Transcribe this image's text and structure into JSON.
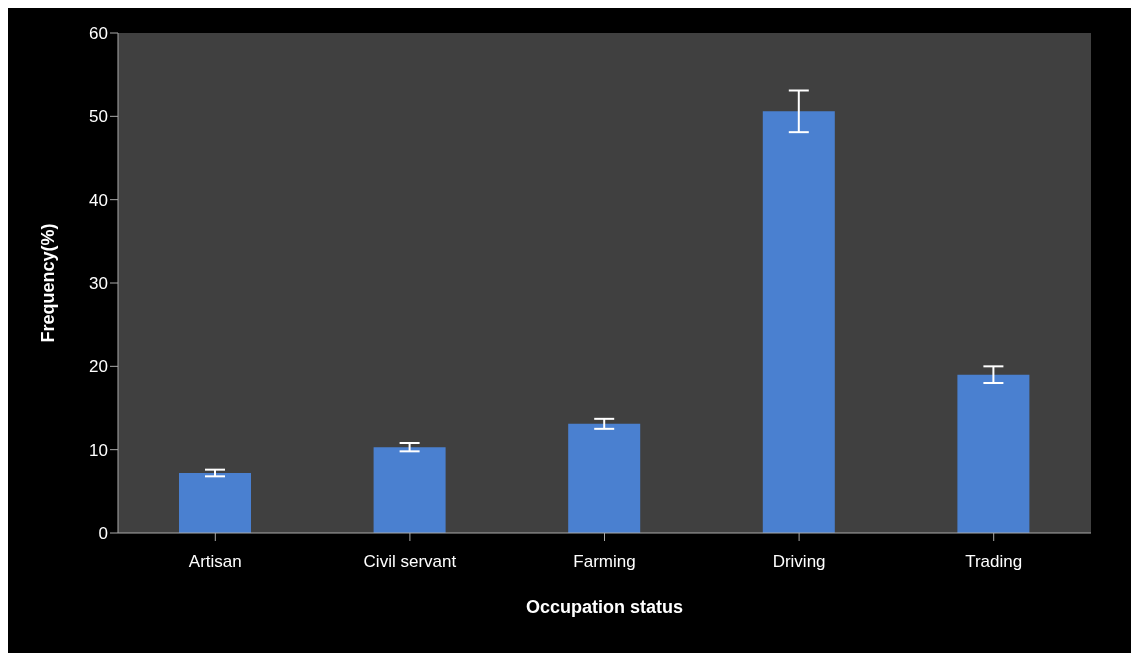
{
  "chart_data": {
    "type": "bar",
    "xlabel": "Occupation status",
    "ylabel": "Frequency(%)",
    "categories": [
      "Artisan",
      "Civil servant",
      "Farming",
      "Driving",
      "Trading"
    ],
    "values": [
      7.2,
      10.3,
      13.1,
      50.6,
      19.0
    ],
    "errors": [
      0.4,
      0.5,
      0.6,
      2.5,
      1.0
    ],
    "color": "#4a80d0",
    "ylim": [
      0,
      60
    ],
    "yticks": [
      0,
      10,
      20,
      30,
      40,
      50,
      60
    ],
    "grid": false
  }
}
